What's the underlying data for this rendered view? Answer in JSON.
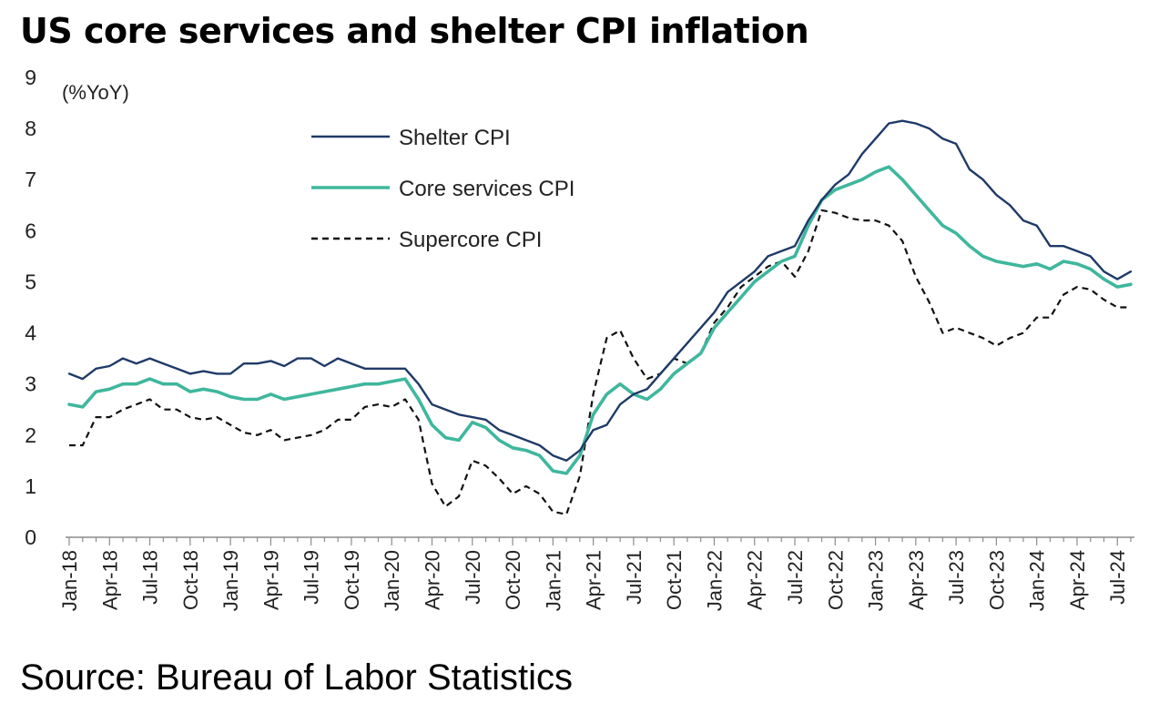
{
  "title": "US core services and shelter CPI inflation",
  "source": "Source: Bureau of Labor Statistics",
  "colors": {
    "shelter": "#1f3a68",
    "core": "#3fb79d",
    "supercore": "#111111",
    "axis": "#8c8c8c"
  },
  "chart_data": {
    "type": "line",
    "title": "US core services and shelter CPI inflation",
    "ylabel": "(%YoY)",
    "xlabel": "",
    "ylim": [
      0,
      9
    ],
    "yticks": [
      0,
      1,
      2,
      3,
      4,
      5,
      6,
      7,
      8,
      9
    ],
    "grid": false,
    "legend_position": "top-center",
    "x": [
      "Jan-18",
      "Feb-18",
      "Mar-18",
      "Apr-18",
      "May-18",
      "Jun-18",
      "Jul-18",
      "Aug-18",
      "Sep-18",
      "Oct-18",
      "Nov-18",
      "Dec-18",
      "Jan-19",
      "Feb-19",
      "Mar-19",
      "Apr-19",
      "May-19",
      "Jun-19",
      "Jul-19",
      "Aug-19",
      "Sep-19",
      "Oct-19",
      "Nov-19",
      "Dec-19",
      "Jan-20",
      "Feb-20",
      "Mar-20",
      "Apr-20",
      "May-20",
      "Jun-20",
      "Jul-20",
      "Aug-20",
      "Sep-20",
      "Oct-20",
      "Nov-20",
      "Dec-20",
      "Jan-21",
      "Feb-21",
      "Mar-21",
      "Apr-21",
      "May-21",
      "Jun-21",
      "Jul-21",
      "Aug-21",
      "Sep-21",
      "Oct-21",
      "Nov-21",
      "Dec-21",
      "Jan-22",
      "Feb-22",
      "Mar-22",
      "Apr-22",
      "May-22",
      "Jun-22",
      "Jul-22",
      "Aug-22",
      "Sep-22",
      "Oct-22",
      "Nov-22",
      "Dec-22",
      "Jan-23",
      "Feb-23",
      "Mar-23",
      "Apr-23",
      "May-23",
      "Jun-23",
      "Jul-23",
      "Aug-23",
      "Sep-23",
      "Oct-23",
      "Nov-23",
      "Dec-23",
      "Jan-24",
      "Feb-24",
      "Mar-24",
      "Apr-24",
      "May-24",
      "Jun-24",
      "Jul-24",
      "Aug-24"
    ],
    "x_tick_labels": [
      "Jan-18",
      "Apr-18",
      "Jul-18",
      "Oct-18",
      "Jan-19",
      "Apr-19",
      "Jul-19",
      "Oct-19",
      "Jan-20",
      "Apr-20",
      "Jul-20",
      "Oct-20",
      "Jan-21",
      "Apr-21",
      "Jul-21",
      "Oct-21",
      "Jan-22",
      "Apr-22",
      "Jul-22",
      "Oct-22",
      "Jan-23",
      "Apr-23",
      "Jul-23",
      "Oct-23",
      "Jan-24",
      "Apr-24",
      "Jul-24"
    ],
    "series": [
      {
        "name": "Shelter CPI",
        "key": "shelter",
        "style": "solid",
        "values": [
          3.2,
          3.1,
          3.3,
          3.35,
          3.5,
          3.4,
          3.5,
          3.4,
          3.3,
          3.2,
          3.25,
          3.2,
          3.2,
          3.4,
          3.4,
          3.45,
          3.35,
          3.5,
          3.5,
          3.35,
          3.5,
          3.4,
          3.3,
          3.3,
          3.3,
          3.3,
          3.0,
          2.6,
          2.5,
          2.4,
          2.35,
          2.3,
          2.1,
          2.0,
          1.9,
          1.8,
          1.6,
          1.5,
          1.7,
          2.1,
          2.2,
          2.6,
          2.8,
          2.9,
          3.2,
          3.5,
          3.8,
          4.1,
          4.4,
          4.8,
          5.0,
          5.2,
          5.5,
          5.6,
          5.7,
          6.2,
          6.6,
          6.9,
          7.1,
          7.5,
          7.8,
          8.1,
          8.15,
          8.1,
          8.0,
          7.8,
          7.7,
          7.2,
          7.0,
          6.7,
          6.5,
          6.2,
          6.1,
          5.7,
          5.7,
          5.6,
          5.5,
          5.2,
          5.05,
          5.2
        ]
      },
      {
        "name": "Core services CPI",
        "key": "core",
        "style": "solid",
        "values": [
          2.6,
          2.55,
          2.85,
          2.9,
          3.0,
          3.0,
          3.1,
          3.0,
          3.0,
          2.85,
          2.9,
          2.85,
          2.75,
          2.7,
          2.7,
          2.8,
          2.7,
          2.75,
          2.8,
          2.85,
          2.9,
          2.95,
          3.0,
          3.0,
          3.05,
          3.1,
          2.7,
          2.2,
          1.95,
          1.9,
          2.25,
          2.15,
          1.9,
          1.75,
          1.7,
          1.6,
          1.3,
          1.25,
          1.6,
          2.4,
          2.8,
          3.0,
          2.8,
          2.7,
          2.9,
          3.2,
          3.4,
          3.6,
          4.1,
          4.4,
          4.7,
          5.0,
          5.2,
          5.4,
          5.5,
          6.1,
          6.6,
          6.8,
          6.9,
          7.0,
          7.15,
          7.25,
          7.0,
          6.7,
          6.4,
          6.1,
          5.95,
          5.7,
          5.5,
          5.4,
          5.35,
          5.3,
          5.35,
          5.25,
          5.4,
          5.35,
          5.25,
          5.05,
          4.9,
          4.95
        ]
      },
      {
        "name": "Supercore CPI",
        "key": "supercore",
        "style": "dashed",
        "values": [
          1.8,
          1.8,
          2.35,
          2.35,
          2.5,
          2.6,
          2.7,
          2.5,
          2.5,
          2.35,
          2.3,
          2.35,
          2.2,
          2.05,
          2.0,
          2.1,
          1.9,
          1.95,
          2.0,
          2.1,
          2.3,
          2.3,
          2.55,
          2.6,
          2.55,
          2.7,
          2.3,
          1.05,
          0.6,
          0.8,
          1.5,
          1.4,
          1.15,
          0.85,
          1.0,
          0.85,
          0.5,
          0.45,
          1.2,
          2.8,
          3.9,
          4.05,
          3.5,
          3.1,
          3.2,
          3.5,
          3.4,
          3.6,
          4.2,
          4.5,
          4.9,
          5.1,
          5.3,
          5.4,
          5.1,
          5.6,
          6.4,
          6.35,
          6.25,
          6.2,
          6.2,
          6.1,
          5.8,
          5.1,
          4.6,
          4.0,
          4.1,
          4.0,
          3.9,
          3.75,
          3.9,
          4.0,
          4.3,
          4.3,
          4.75,
          4.9,
          4.85,
          4.65,
          4.5,
          4.5
        ]
      }
    ]
  }
}
